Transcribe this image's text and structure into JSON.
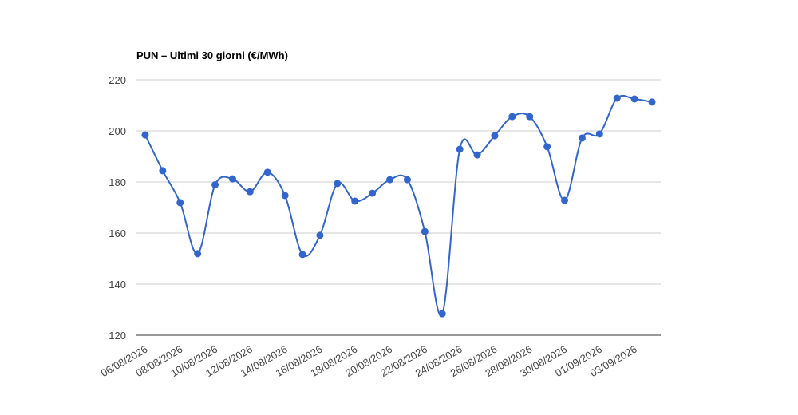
{
  "chart_data": {
    "type": "line",
    "title": "PUN – Ultimi 30 giorni (€/MWh)",
    "categories": [
      "06/08/2026",
      null,
      "08/08/2026",
      null,
      "10/08/2026",
      null,
      "12/08/2026",
      null,
      "14/08/2026",
      null,
      "16/08/2026",
      null,
      "18/08/2026",
      null,
      "20/08/2026",
      null,
      "22/08/2026",
      null,
      "24/08/2026",
      null,
      "26/08/2026",
      null,
      "28/08/2026",
      null,
      "30/08/2026",
      null,
      "01/09/2026",
      null,
      "03/09/2026",
      null
    ],
    "series": [
      {
        "name": "PUN",
        "color": "#3366cc",
        "values": [
          198.4,
          184.4,
          171.9,
          151.9,
          178.9,
          181.2,
          176.2,
          183.8,
          174.7,
          151.6,
          159.1,
          179.4,
          172.5,
          175.6,
          180.9,
          180.9,
          160.6,
          128.4,
          192.8,
          190.6,
          198.1,
          205.6,
          205.6,
          193.8,
          172.8,
          197.2,
          198.8,
          212.8,
          212.5,
          211.3
        ]
      }
    ],
    "ylim": [
      120,
      220
    ],
    "yticks": [
      120,
      140,
      160,
      180,
      200,
      220
    ],
    "grid": true
  }
}
